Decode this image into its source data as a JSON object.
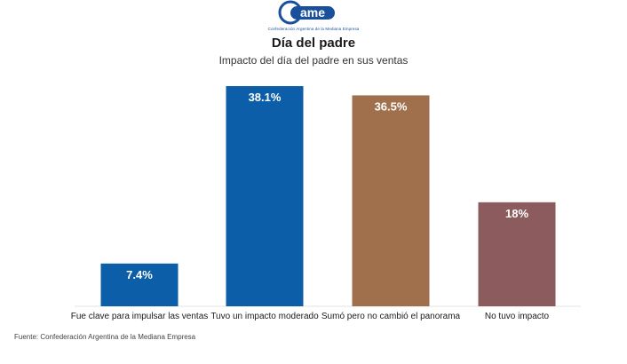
{
  "logo": {
    "text": "came",
    "caption": "Confederación Argentina de la Mediana Empresa",
    "color": "#1a4f9c"
  },
  "header": {
    "title": "Día del padre",
    "subtitle": "Impacto del día del padre en sus ventas"
  },
  "chart_data": {
    "type": "bar",
    "title": "Día del padre",
    "subtitle": "Impacto del día del padre en sus ventas",
    "categories": [
      "Fue clave para impulsar las ventas",
      "Tuvo un impacto moderado",
      "Sumó pero no cambió el panorama",
      "No tuvo impacto"
    ],
    "values": [
      7.4,
      38.1,
      36.5,
      18
    ],
    "value_labels": [
      "7.4%",
      "38.1%",
      "36.5%",
      "18%"
    ],
    "colors": [
      "#0d5ea8",
      "#0d5ea8",
      "#a0704c",
      "#8c5b5e"
    ],
    "xlabel": "",
    "ylabel": "",
    "ylim": [
      0,
      38.1
    ],
    "grid": false,
    "legend": "none"
  },
  "footer": {
    "source": "Fuente: Confederación Argentina de la Mediana Empresa"
  }
}
